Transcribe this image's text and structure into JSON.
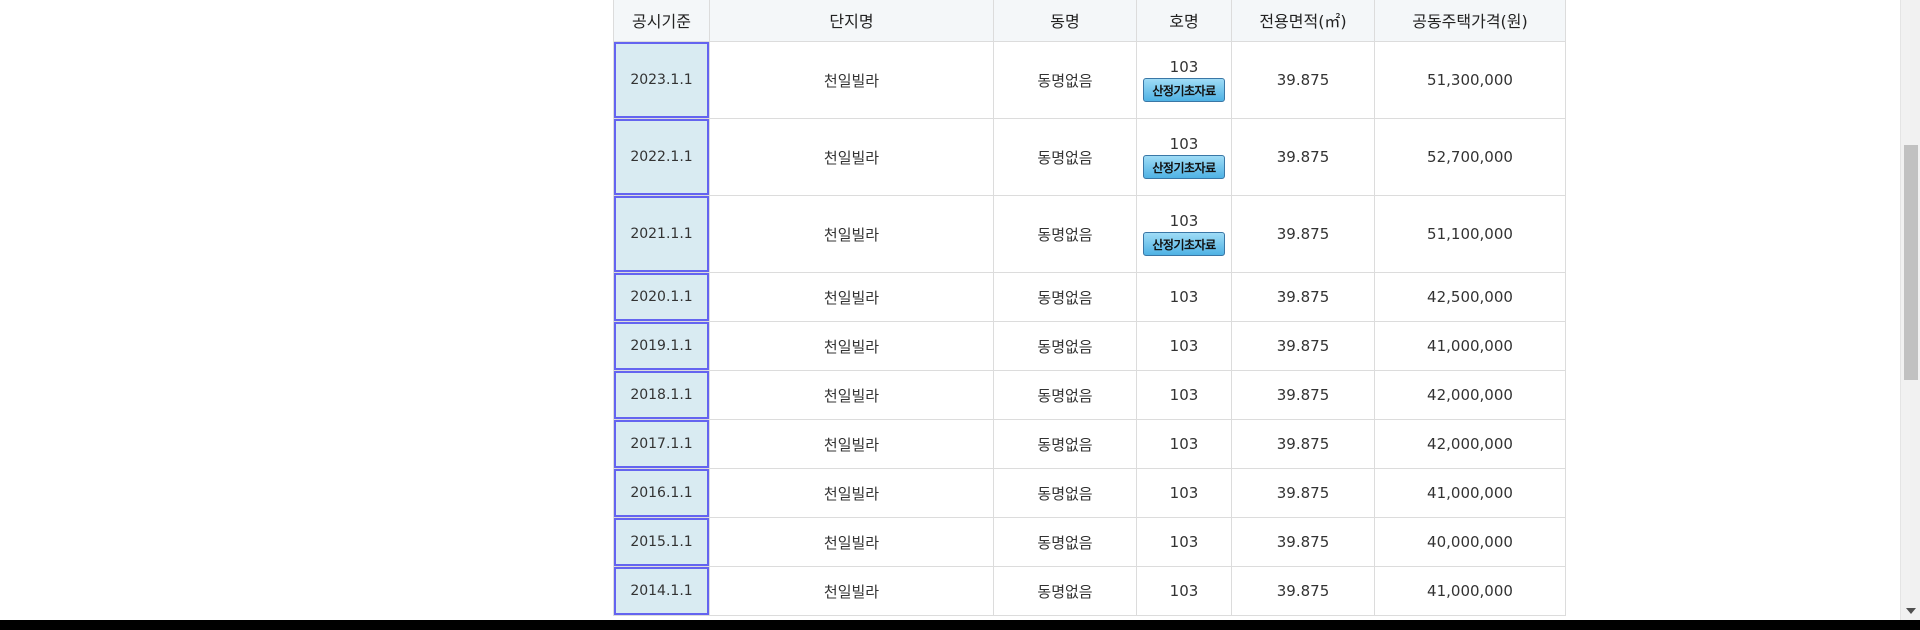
{
  "table": {
    "headers": {
      "basis_date": "공시기준",
      "complex_name": "단지명",
      "building_name": "동명",
      "unit_name": "호명",
      "exclusive_area": "전용면적(㎡)",
      "price": "공동주택가격(원)"
    },
    "button_label": "산정기초자료",
    "rows": [
      {
        "date": "2023.1.1",
        "complex": "천일빌라",
        "building": "동명없음",
        "unit": "103",
        "area": "39.875",
        "price": "51,300,000",
        "has_button": true
      },
      {
        "date": "2022.1.1",
        "complex": "천일빌라",
        "building": "동명없음",
        "unit": "103",
        "area": "39.875",
        "price": "52,700,000",
        "has_button": true
      },
      {
        "date": "2021.1.1",
        "complex": "천일빌라",
        "building": "동명없음",
        "unit": "103",
        "area": "39.875",
        "price": "51,100,000",
        "has_button": true
      },
      {
        "date": "2020.1.1",
        "complex": "천일빌라",
        "building": "동명없음",
        "unit": "103",
        "area": "39.875",
        "price": "42,500,000",
        "has_button": false
      },
      {
        "date": "2019.1.1",
        "complex": "천일빌라",
        "building": "동명없음",
        "unit": "103",
        "area": "39.875",
        "price": "41,000,000",
        "has_button": false
      },
      {
        "date": "2018.1.1",
        "complex": "천일빌라",
        "building": "동명없음",
        "unit": "103",
        "area": "39.875",
        "price": "42,000,000",
        "has_button": false
      },
      {
        "date": "2017.1.1",
        "complex": "천일빌라",
        "building": "동명없음",
        "unit": "103",
        "area": "39.875",
        "price": "42,000,000",
        "has_button": false
      },
      {
        "date": "2016.1.1",
        "complex": "천일빌라",
        "building": "동명없음",
        "unit": "103",
        "area": "39.875",
        "price": "41,000,000",
        "has_button": false
      },
      {
        "date": "2015.1.1",
        "complex": "천일빌라",
        "building": "동명없음",
        "unit": "103",
        "area": "39.875",
        "price": "40,000,000",
        "has_button": false
      },
      {
        "date": "2014.1.1",
        "complex": "천일빌라",
        "building": "동명없음",
        "unit": "103",
        "area": "39.875",
        "price": "41,000,000",
        "has_button": false
      }
    ]
  },
  "colors": {
    "header_bg": "#f4f7f9",
    "date_cell_bg": "#d9ebf2",
    "date_cell_outline": "#6464f0",
    "button_gradient_top": "#9fdcf6",
    "button_gradient_bottom": "#4fb2e4",
    "grid_line": "#dcdcdc"
  },
  "icons": {
    "scroll_down": "chevron-down-icon"
  }
}
